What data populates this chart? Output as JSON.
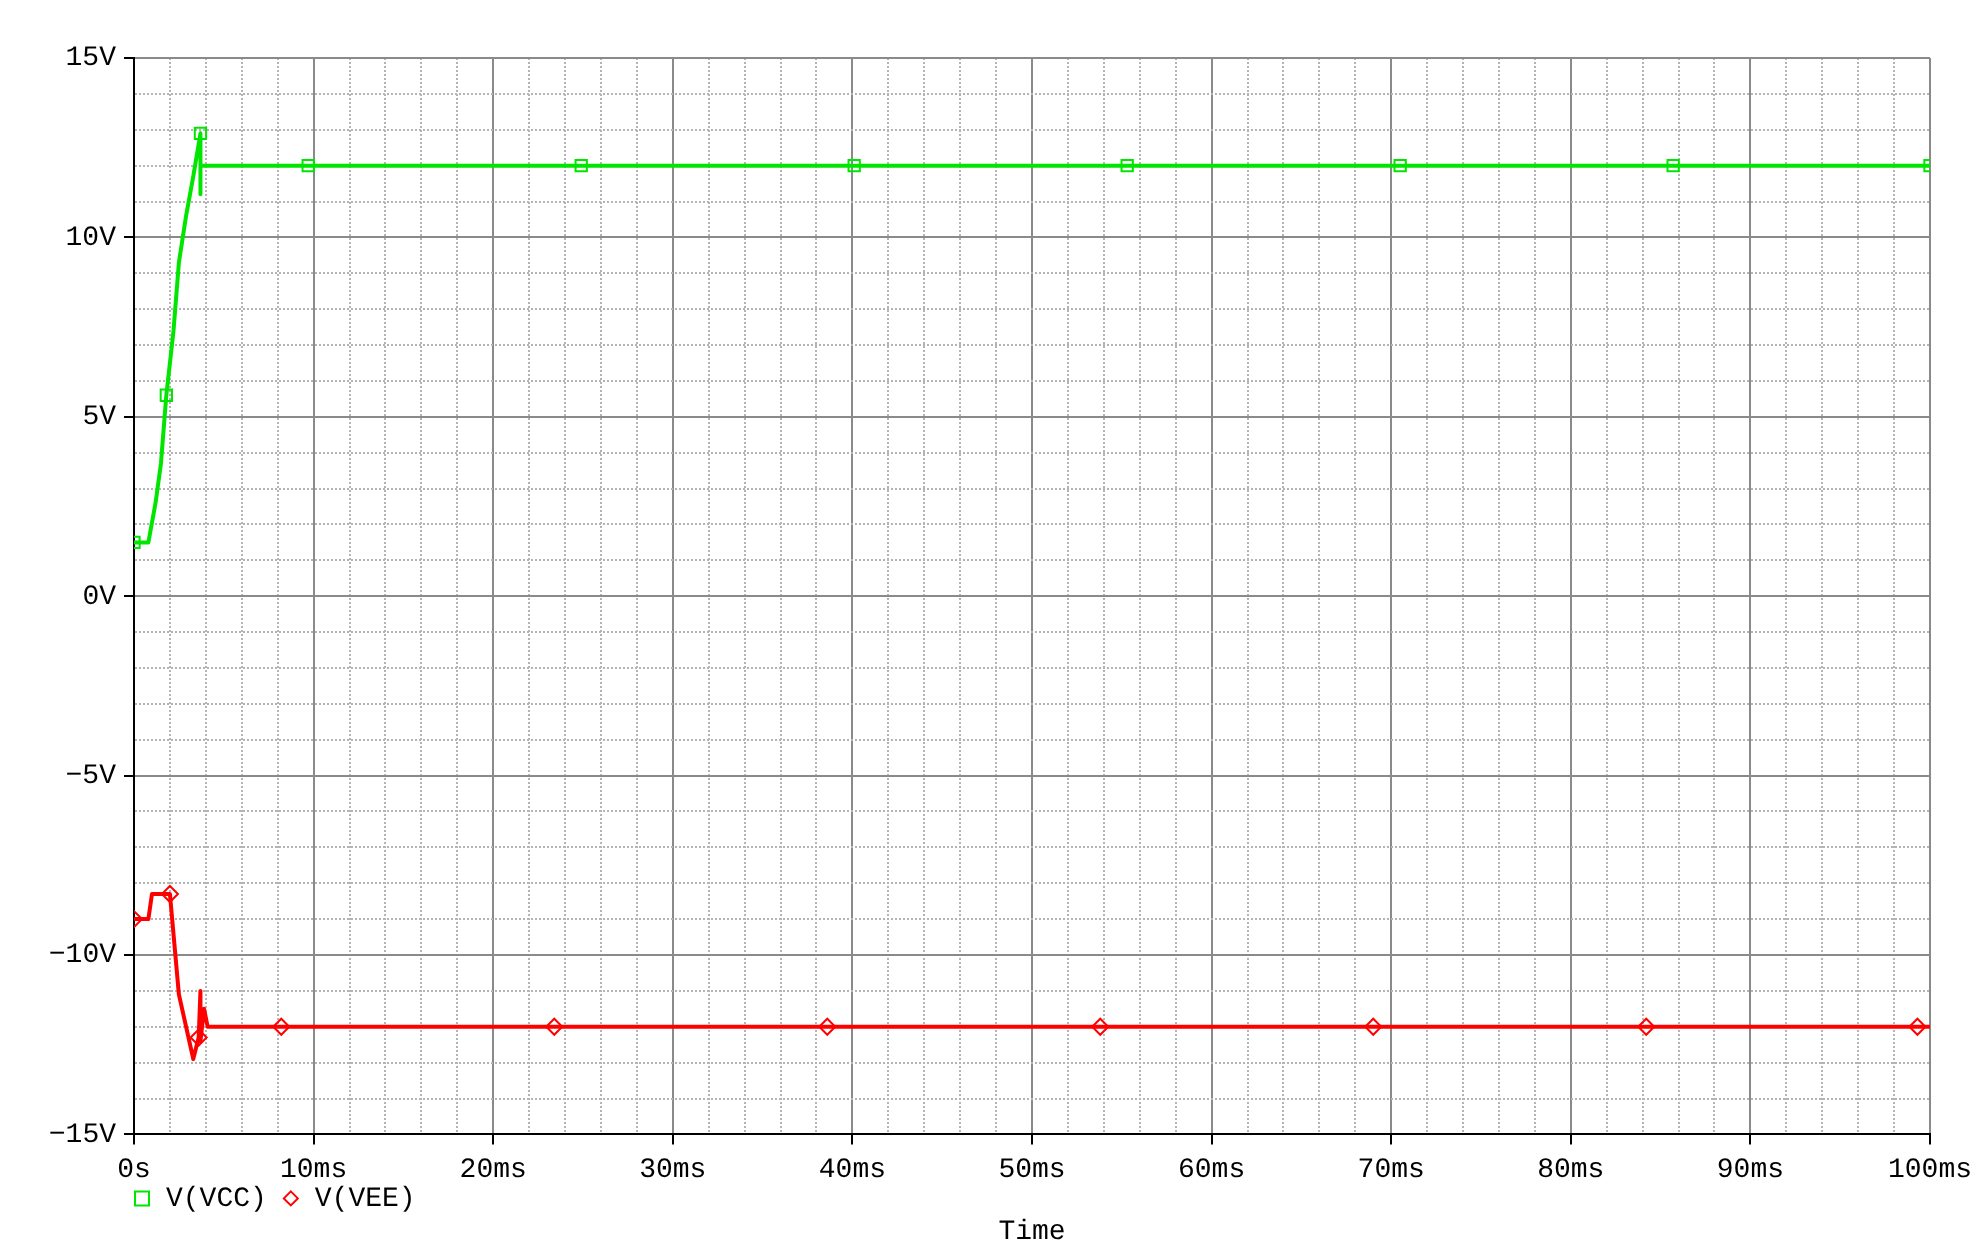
{
  "chart_data": {
    "type": "line",
    "xlabel": "Time",
    "series": [
      {
        "name": "V(VCC)",
        "color": "#00e600",
        "marker": "square",
        "x": [
          0,
          0.8,
          1.2,
          1.5,
          1.8,
          2.2,
          2.5,
          2.9,
          3.3,
          3.7,
          3.7,
          3.7,
          9.7,
          24.9,
          40.1,
          55.3,
          70.5,
          85.7,
          100
        ],
        "values": [
          1.5,
          1.5,
          2.6,
          3.7,
          5.6,
          7.4,
          9.3,
          10.6,
          11.7,
          12.9,
          11.2,
          12,
          12,
          12,
          12,
          12,
          12,
          12,
          12
        ]
      },
      {
        "name": "V(VEE)",
        "color": "#ff0000",
        "marker": "diamond",
        "x": [
          0,
          0.8,
          1.0,
          2.0,
          2.5,
          3.3,
          3.6,
          3.7,
          3.7,
          3.9,
          4.1,
          8.2,
          23.4,
          38.6,
          53.8,
          69,
          84.2,
          99.3,
          100
        ],
        "values": [
          -9,
          -9,
          -8.3,
          -8.3,
          -11.1,
          -12.9,
          -12.3,
          -11.0,
          -12.4,
          -11.5,
          -12,
          -12,
          -12,
          -12,
          -12,
          -12,
          -12,
          -12,
          -12
        ]
      }
    ],
    "xlim": [
      0,
      100
    ],
    "ylim": [
      -15,
      15
    ],
    "xticks": [
      {
        "value": 0,
        "label": "0s"
      },
      {
        "value": 2,
        "label": null
      },
      {
        "value": 4,
        "label": null
      },
      {
        "value": 6,
        "label": null
      },
      {
        "value": 8,
        "label": null
      },
      {
        "value": 10,
        "label": "10ms"
      },
      {
        "value": 12,
        "label": null
      },
      {
        "value": 14,
        "label": null
      },
      {
        "value": 16,
        "label": null
      },
      {
        "value": 18,
        "label": null
      },
      {
        "value": 20,
        "label": "20ms"
      },
      {
        "value": 22,
        "label": null
      },
      {
        "value": 24,
        "label": null
      },
      {
        "value": 26,
        "label": null
      },
      {
        "value": 28,
        "label": null
      },
      {
        "value": 30,
        "label": "30ms"
      },
      {
        "value": 32,
        "label": null
      },
      {
        "value": 34,
        "label": null
      },
      {
        "value": 36,
        "label": null
      },
      {
        "value": 38,
        "label": null
      },
      {
        "value": 40,
        "label": "40ms"
      },
      {
        "value": 42,
        "label": null
      },
      {
        "value": 44,
        "label": null
      },
      {
        "value": 46,
        "label": null
      },
      {
        "value": 48,
        "label": null
      },
      {
        "value": 50,
        "label": "50ms"
      },
      {
        "value": 52,
        "label": null
      },
      {
        "value": 54,
        "label": null
      },
      {
        "value": 56,
        "label": null
      },
      {
        "value": 58,
        "label": null
      },
      {
        "value": 60,
        "label": "60ms"
      },
      {
        "value": 62,
        "label": null
      },
      {
        "value": 64,
        "label": null
      },
      {
        "value": 66,
        "label": null
      },
      {
        "value": 68,
        "label": null
      },
      {
        "value": 70,
        "label": "70ms"
      },
      {
        "value": 72,
        "label": null
      },
      {
        "value": 74,
        "label": null
      },
      {
        "value": 76,
        "label": null
      },
      {
        "value": 78,
        "label": null
      },
      {
        "value": 80,
        "label": "80ms"
      },
      {
        "value": 82,
        "label": null
      },
      {
        "value": 84,
        "label": null
      },
      {
        "value": 86,
        "label": null
      },
      {
        "value": 88,
        "label": null
      },
      {
        "value": 90,
        "label": "90ms"
      },
      {
        "value": 92,
        "label": null
      },
      {
        "value": 94,
        "label": null
      },
      {
        "value": 96,
        "label": null
      },
      {
        "value": 98,
        "label": null
      },
      {
        "value": 100,
        "label": "100ms"
      }
    ],
    "yticks": [
      {
        "value": -15,
        "label": "−15V"
      },
      {
        "value": -14,
        "label": null
      },
      {
        "value": -13,
        "label": null
      },
      {
        "value": -12,
        "label": null
      },
      {
        "value": -11,
        "label": null
      },
      {
        "value": -10,
        "label": "−10V"
      },
      {
        "value": -9,
        "label": null
      },
      {
        "value": -8,
        "label": null
      },
      {
        "value": -7,
        "label": null
      },
      {
        "value": -6,
        "label": null
      },
      {
        "value": -5,
        "label": "−5V"
      },
      {
        "value": -4,
        "label": null
      },
      {
        "value": -3,
        "label": null
      },
      {
        "value": -2,
        "label": null
      },
      {
        "value": -1,
        "label": null
      },
      {
        "value": 0,
        "label": "0V"
      },
      {
        "value": 1,
        "label": null
      },
      {
        "value": 2,
        "label": null
      },
      {
        "value": 3,
        "label": null
      },
      {
        "value": 4,
        "label": null
      },
      {
        "value": 5,
        "label": "5V"
      },
      {
        "value": 6,
        "label": null
      },
      {
        "value": 7,
        "label": null
      },
      {
        "value": 8,
        "label": null
      },
      {
        "value": 9,
        "label": null
      },
      {
        "value": 10,
        "label": "10V"
      },
      {
        "value": 11,
        "label": null
      },
      {
        "value": 12,
        "label": null
      },
      {
        "value": 13,
        "label": null
      },
      {
        "value": 14,
        "label": null
      },
      {
        "value": 15,
        "label": "15V"
      }
    ],
    "grid": true,
    "legend": "bottom left"
  }
}
